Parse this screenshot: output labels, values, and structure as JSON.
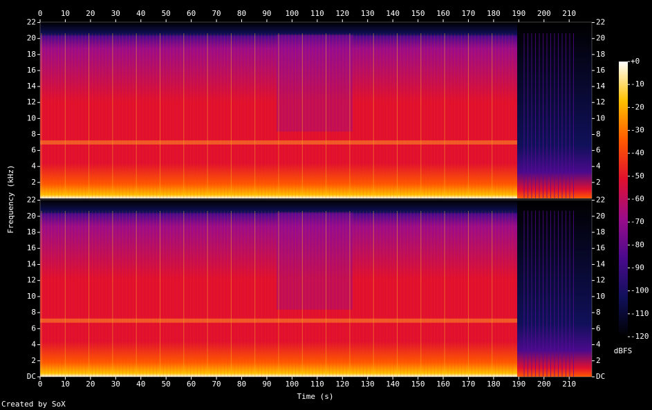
{
  "chart_data": {
    "type": "spectrogram",
    "x_label": "Time (s)",
    "y_label": "Frequency (kHz)",
    "xlim": [
      0,
      219
    ],
    "xticks": [
      0,
      10,
      20,
      30,
      40,
      50,
      60,
      70,
      80,
      90,
      100,
      110,
      120,
      130,
      140,
      150,
      160,
      170,
      180,
      190,
      200,
      210
    ],
    "panels": [
      {
        "ylim": [
          0,
          22.05
        ],
        "yticks": [
          2,
          4,
          6,
          8,
          10,
          12,
          14,
          16,
          18,
          20,
          22
        ]
      },
      {
        "ylim": [
          0,
          22.05
        ],
        "yticks": [
          {
            "value": 0,
            "label": "DC"
          },
          2,
          4,
          6,
          8,
          10,
          12,
          14,
          16,
          18,
          20,
          22
        ]
      }
    ],
    "colorbar": {
      "label": "dBFS",
      "lim": [
        -120,
        0
      ],
      "ticks": [
        {
          "value": 0,
          "label": "+0"
        },
        -10,
        -20,
        -30,
        -40,
        -50,
        -60,
        -70,
        -80,
        -90,
        -100,
        -110,
        -120
      ],
      "colors": [
        "#000000",
        "#10105a",
        "#4a0a8c",
        "#9a0c8a",
        "#e0102e",
        "#ff5a00",
        "#ffc000",
        "#ffffff"
      ]
    },
    "footer": "Created by SoX"
  }
}
